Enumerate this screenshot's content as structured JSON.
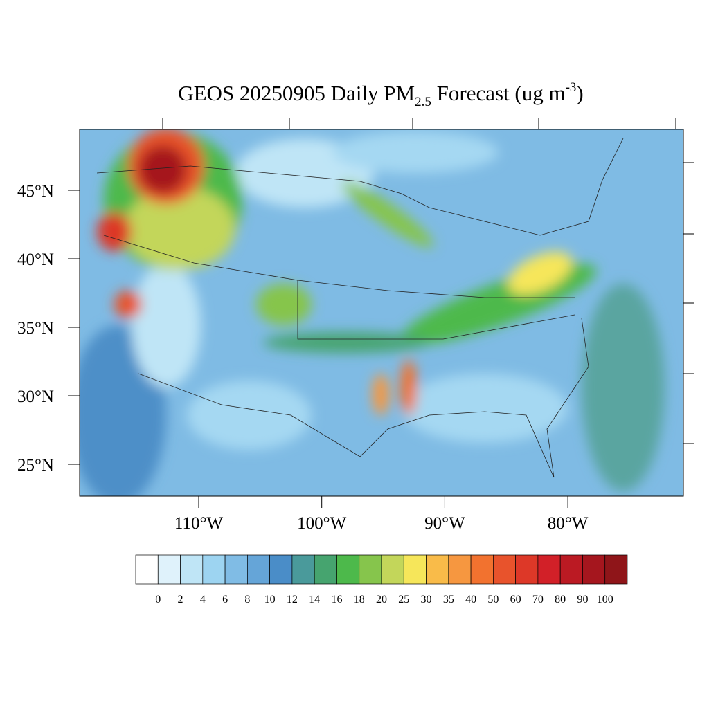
{
  "title": {
    "main": "GEOS 20250905 Daily PM",
    "subscript": "2.5",
    "middle": " Forecast (ug m",
    "superscript": "-3",
    "end": ")"
  },
  "lat_labels": [
    "45°N",
    "40°N",
    "35°N",
    "30°N",
    "25°N"
  ],
  "lon_labels": [
    "110°W",
    "100°W",
    "90°W",
    "80°W"
  ],
  "colorbar": {
    "labels": [
      "0",
      "2",
      "4",
      "6",
      "8",
      "10",
      "12",
      "14",
      "16",
      "18",
      "20",
      "25",
      "30",
      "35",
      "40",
      "50",
      "60",
      "70",
      "80",
      "90",
      "100"
    ],
    "colors": [
      "#ffffff",
      "#dff2fb",
      "#bfe5f6",
      "#9dd4f1",
      "#80bce5",
      "#65a5d8",
      "#4a8dc8",
      "#4a9a9b",
      "#46a46f",
      "#4db94b",
      "#86c54c",
      "#c3d65a",
      "#f6e65a",
      "#f9bb49",
      "#f69740",
      "#f2722f",
      "#e8532c",
      "#dd3828",
      "#d22028",
      "#bb1a23",
      "#a5161e",
      "#8f1519"
    ]
  }
}
